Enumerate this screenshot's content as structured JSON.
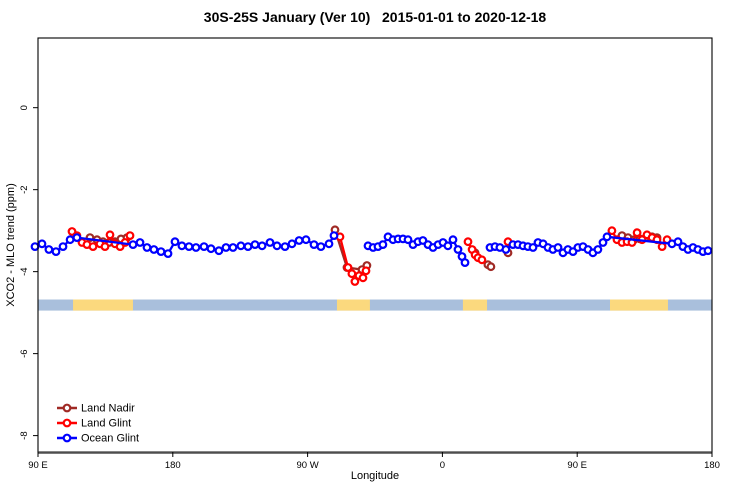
{
  "chart_data": {
    "type": "line",
    "title": "30S-25S January (Ver 10)   2015-01-01 to 2020-12-18",
    "xlabel": "Longitude",
    "ylabel": "XCO2 - MLO trend (ppm)",
    "xlim": [
      90,
      540
    ],
    "ylim": [
      -8.4,
      1.7
    ],
    "x_axis_note": "longitude, unwrapped eastward starting at 90E (values >180 continue through 90W, 0, 90E, 180)",
    "x_ticks": [
      {
        "value": 90,
        "label": "90 E"
      },
      {
        "value": 180,
        "label": "180"
      },
      {
        "value": 270,
        "label": "90 W"
      },
      {
        "value": 360,
        "label": "0"
      },
      {
        "value": 450,
        "label": "90 E"
      },
      {
        "value": 540,
        "label": "180"
      }
    ],
    "y_ticks": [
      {
        "value": 0,
        "label": "0"
      },
      {
        "value": -2,
        "label": "-2"
      },
      {
        "value": -4,
        "label": "-4"
      },
      {
        "value": -6,
        "label": "-6"
      },
      {
        "value": -8,
        "label": "-8"
      }
    ],
    "grid": false,
    "marker": "open-circle",
    "series": [
      {
        "name": "Land Nadir",
        "color": "#A02A25",
        "segments": [
          [
            [
              124.7,
              -3.17
            ],
            [
              129.4,
              -3.22
            ],
            [
              133.4,
              -3.27
            ],
            [
              137.4,
              -3.29
            ],
            [
              141.4,
              -3.27
            ],
            [
              145.4,
              -3.2
            ],
            [
              149.4,
              -3.17
            ]
          ],
          [
            [
              288.3,
              -2.98
            ],
            [
              296.3,
              -3.9
            ],
            [
              306.3,
              -3.95
            ],
            [
              309.6,
              -3.85
            ]
          ],
          [
            [
              381.8,
              -3.54
            ],
            [
              390.4,
              -3.83
            ],
            [
              392.4,
              -3.88
            ]
          ],
          [
            [
              403.8,
              -3.54
            ]
          ],
          [
            [
              479.9,
              -3.12
            ],
            [
              483.9,
              -3.17
            ],
            [
              487.9,
              -3.22
            ],
            [
              491.9,
              -3.2
            ],
            [
              495.9,
              -3.17
            ],
            [
              500.0,
              -3.15
            ],
            [
              503.3,
              -3.17
            ]
          ]
        ],
        "connect": [
          [
            0
          ],
          [
            1
          ],
          [
            2
          ],
          [
            3
          ],
          [
            4
          ]
        ]
      },
      {
        "name": "Land Glint",
        "color": "#FF0000",
        "segments": [
          [
            [
              112.7,
              -3.02
            ],
            [
              116.0,
              -3.12
            ],
            [
              119.4,
              -3.29
            ],
            [
              122.7,
              -3.34
            ],
            [
              126.7,
              -3.39
            ],
            [
              131.4,
              -3.32
            ],
            [
              134.7,
              -3.39
            ],
            [
              138.1,
              -3.1
            ],
            [
              141.4,
              -3.32
            ],
            [
              144.8,
              -3.39
            ],
            [
              148.1,
              -3.29
            ],
            [
              151.4,
              -3.12
            ]
          ],
          [
            [
              291.6,
              -3.15
            ],
            [
              297.0,
              -3.9
            ],
            [
              299.6,
              -4.05
            ],
            [
              301.6,
              -4.24
            ],
            [
              304.3,
              -4.1
            ],
            [
              307.0,
              -4.15
            ],
            [
              309.0,
              -3.98
            ]
          ],
          [
            [
              377.1,
              -3.27
            ],
            [
              379.8,
              -3.46
            ],
            [
              381.8,
              -3.59
            ],
            [
              383.8,
              -3.66
            ],
            [
              386.4,
              -3.71
            ]
          ],
          [
            [
              403.8,
              -3.27
            ]
          ],
          [
            [
              473.2,
              -3.0
            ],
            [
              476.6,
              -3.22
            ],
            [
              479.9,
              -3.29
            ],
            [
              483.3,
              -3.27
            ],
            [
              486.6,
              -3.29
            ],
            [
              490.0,
              -3.05
            ],
            [
              493.3,
              -3.22
            ],
            [
              496.6,
              -3.1
            ],
            [
              500.0,
              -3.17
            ],
            [
              503.3,
              -3.22
            ],
            [
              506.7,
              -3.39
            ],
            [
              510.0,
              -3.22
            ]
          ]
        ],
        "connect": [
          [
            0
          ],
          [
            1
          ],
          [
            2
          ],
          [
            3
          ],
          [
            4
          ]
        ]
      },
      {
        "name": "Ocean Glint",
        "color": "#0000FF",
        "segments": [
          [
            [
              88.0,
              -3.39
            ],
            [
              92.7,
              -3.32
            ],
            [
              97.3,
              -3.46
            ],
            [
              102.0,
              -3.51
            ],
            [
              106.7,
              -3.39
            ],
            [
              111.4,
              -3.22
            ],
            [
              116.0,
              -3.17
            ]
          ],
          [
            [
              153.4,
              -3.34
            ],
            [
              158.1,
              -3.29
            ],
            [
              162.8,
              -3.41
            ],
            [
              167.4,
              -3.46
            ],
            [
              172.1,
              -3.51
            ],
            [
              176.8,
              -3.56
            ],
            [
              181.5,
              -3.27
            ],
            [
              186.1,
              -3.37
            ],
            [
              190.8,
              -3.39
            ],
            [
              195.5,
              -3.41
            ],
            [
              200.8,
              -3.39
            ],
            [
              205.5,
              -3.44
            ],
            [
              210.8,
              -3.49
            ],
            [
              215.5,
              -3.41
            ],
            [
              220.2,
              -3.41
            ],
            [
              225.5,
              -3.37
            ],
            [
              230.2,
              -3.39
            ],
            [
              234.9,
              -3.34
            ],
            [
              239.6,
              -3.37
            ],
            [
              244.9,
              -3.29
            ],
            [
              249.6,
              -3.37
            ],
            [
              254.9,
              -3.39
            ],
            [
              259.6,
              -3.32
            ],
            [
              264.3,
              -3.24
            ],
            [
              268.9,
              -3.22
            ],
            [
              274.3,
              -3.34
            ],
            [
              278.9,
              -3.39
            ],
            [
              284.3,
              -3.32
            ],
            [
              287.6,
              -3.12
            ]
          ],
          [
            [
              310.3,
              -3.37
            ],
            [
              313.7,
              -3.41
            ],
            [
              317.0,
              -3.39
            ],
            [
              320.3,
              -3.34
            ],
            [
              323.7,
              -3.15
            ],
            [
              327.0,
              -3.22
            ],
            [
              330.4,
              -3.2
            ],
            [
              333.7,
              -3.2
            ],
            [
              337.0,
              -3.22
            ],
            [
              340.4,
              -3.34
            ],
            [
              343.7,
              -3.27
            ],
            [
              347.0,
              -3.24
            ],
            [
              350.4,
              -3.34
            ],
            [
              353.7,
              -3.41
            ],
            [
              357.1,
              -3.34
            ],
            [
              360.4,
              -3.29
            ],
            [
              363.7,
              -3.37
            ],
            [
              367.1,
              -3.22
            ],
            [
              370.4,
              -3.46
            ],
            [
              373.1,
              -3.63
            ],
            [
              375.1,
              -3.78
            ]
          ],
          [
            [
              391.8,
              -3.41
            ],
            [
              395.1,
              -3.39
            ],
            [
              398.4,
              -3.41
            ],
            [
              402.4,
              -3.46
            ],
            [
              407.1,
              -3.34
            ],
            [
              410.5,
              -3.34
            ],
            [
              413.8,
              -3.37
            ],
            [
              417.1,
              -3.39
            ],
            [
              420.5,
              -3.41
            ],
            [
              423.8,
              -3.29
            ],
            [
              427.2,
              -3.32
            ],
            [
              430.5,
              -3.41
            ],
            [
              433.8,
              -3.46
            ],
            [
              437.2,
              -3.41
            ],
            [
              440.5,
              -3.54
            ],
            [
              443.8,
              -3.46
            ],
            [
              447.2,
              -3.51
            ],
            [
              450.5,
              -3.41
            ],
            [
              453.9,
              -3.39
            ],
            [
              457.2,
              -3.46
            ],
            [
              460.5,
              -3.54
            ],
            [
              463.8,
              -3.46
            ],
            [
              467.2,
              -3.29
            ],
            [
              469.9,
              -3.15
            ]
          ],
          [
            [
              513.3,
              -3.32
            ],
            [
              517.3,
              -3.27
            ],
            [
              520.6,
              -3.39
            ],
            [
              524.0,
              -3.46
            ],
            [
              527.3,
              -3.41
            ],
            [
              530.6,
              -3.46
            ],
            [
              534.0,
              -3.51
            ],
            [
              537.3,
              -3.49
            ]
          ]
        ],
        "connect": [
          [
            0,
            1
          ],
          [
            2
          ],
          [
            3,
            4
          ]
        ]
      }
    ],
    "surface_band": {
      "description": "surface type strip: ocean vs land along longitude",
      "value_top": -4.68,
      "value_bottom": -4.95,
      "ocean_color": "#A9BFDC",
      "land_color": "#FBD97E",
      "land_segments": [
        [
          113.4,
          153.4
        ],
        [
          289.6,
          311.6
        ],
        [
          373.7,
          389.8
        ],
        [
          471.9,
          510.6
        ]
      ]
    },
    "legend": {
      "position": "bottom-left",
      "items": [
        {
          "label": "Land Nadir",
          "color": "#A02A25"
        },
        {
          "label": "Land Glint",
          "color": "#FF0000"
        },
        {
          "label": "Ocean Glint",
          "color": "#0000FF"
        }
      ]
    }
  }
}
